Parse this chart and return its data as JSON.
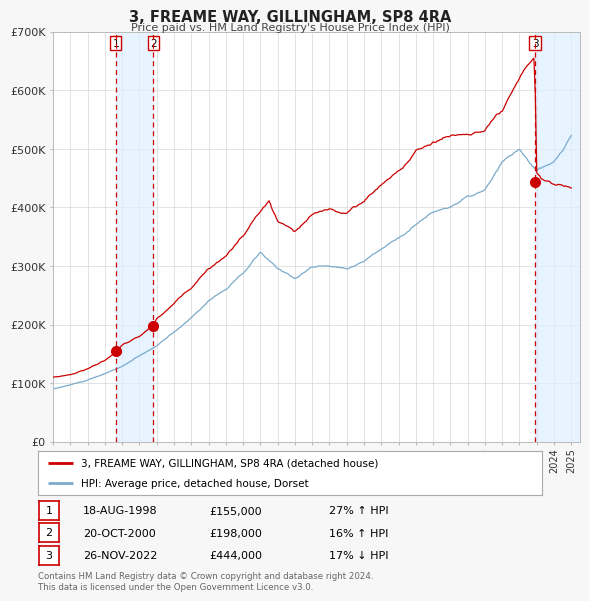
{
  "title": "3, FREAME WAY, GILLINGHAM, SP8 4RA",
  "subtitle": "Price paid vs. HM Land Registry's House Price Index (HPI)",
  "ylim": [
    0,
    700000
  ],
  "yticks": [
    0,
    100000,
    200000,
    300000,
    400000,
    500000,
    600000,
    700000
  ],
  "ytick_labels": [
    "£0",
    "£100K",
    "£200K",
    "£300K",
    "£400K",
    "£500K",
    "£600K",
    "£700K"
  ],
  "background_color": "#f7f7f7",
  "plot_bg_color": "#ffffff",
  "grid_color": "#d8d8d8",
  "sale_color": "#cc0000",
  "hpi_color": "#7aabcc",
  "span_color": "#ddeeff",
  "transactions": [
    {
      "label": "1",
      "date_str": "18-AUG-1998",
      "year": 1998.62,
      "price": 155000,
      "pct": "27%",
      "direction": "↑"
    },
    {
      "label": "2",
      "date_str": "20-OCT-2000",
      "year": 2000.8,
      "price": 198000,
      "pct": "16%",
      "direction": "↑"
    },
    {
      "label": "3",
      "date_str": "26-NOV-2022",
      "year": 2022.9,
      "price": 444000,
      "pct": "17%",
      "direction": "↓"
    }
  ],
  "legend_sale_label": "3, FREAME WAY, GILLINGHAM, SP8 4RA (detached house)",
  "legend_hpi_label": "HPI: Average price, detached house, Dorset",
  "footer_line1": "Contains HM Land Registry data © Crown copyright and database right 2024.",
  "footer_line2": "This data is licensed under the Open Government Licence v3.0.",
  "xmin": 1995.0,
  "xmax": 2025.5
}
